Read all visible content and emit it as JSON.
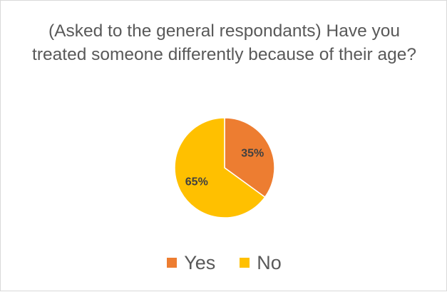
{
  "chart_data": {
    "type": "pie",
    "title": "(Asked to the general respondants) Have you treated someone differently because of their age?",
    "slices": [
      {
        "label": "Yes",
        "value": 35,
        "display": "35%",
        "color": "#ED7D31"
      },
      {
        "label": "No",
        "value": 65,
        "display": "65%",
        "color": "#FFC000"
      }
    ],
    "legend_position": "bottom",
    "start_angle": "12 o'clock",
    "direction": "clockwise"
  }
}
